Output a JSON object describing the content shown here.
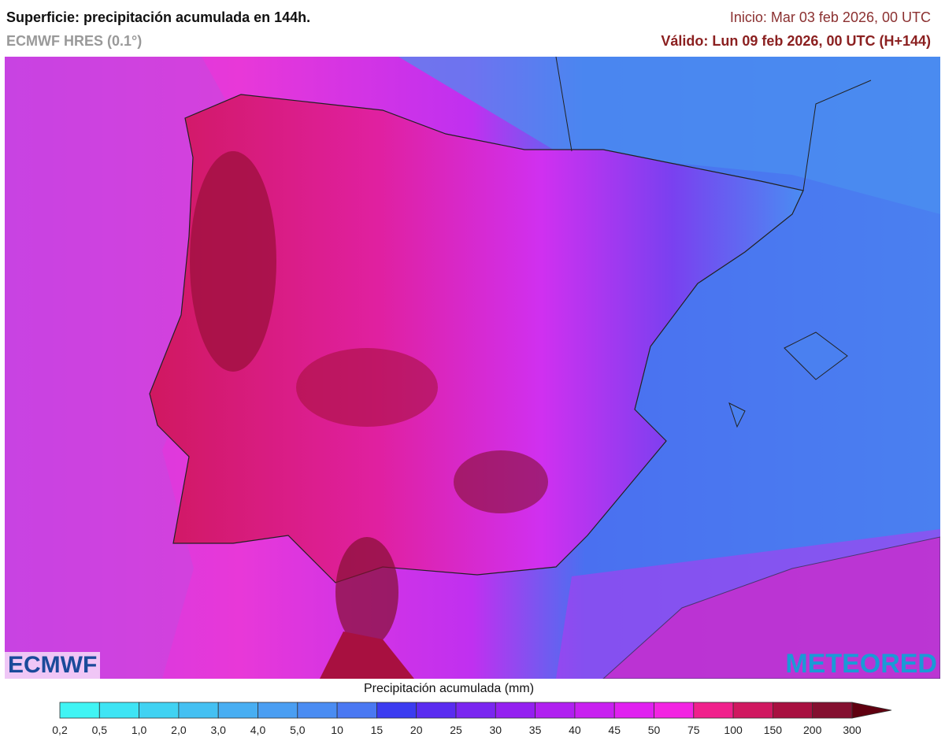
{
  "header": {
    "title": "Superficie: precipitación acumulada en 144h.",
    "model": "ECMWF HRES (0.1°)",
    "init": "Inicio: Mar 03 feb 2026, 00 UTC",
    "valid": "Válido: Lun 09 feb 2026, 00 UTC (H+144)"
  },
  "logos": {
    "left": "ECMWF",
    "right": "METEORED"
  },
  "legend": {
    "title": "Precipitación acumulada (mm)",
    "labels": [
      "0,2",
      "0,5",
      "1,0",
      "2,0",
      "3,0",
      "4,0",
      "5,0",
      "10",
      "15",
      "20",
      "25",
      "30",
      "35",
      "40",
      "45",
      "50",
      "75",
      "100",
      "150",
      "200",
      "300"
    ],
    "colors": [
      "#40f4f4",
      "#3ee4f4",
      "#40d2f2",
      "#44c0f2",
      "#48aef2",
      "#4a9ef2",
      "#4a8cf2",
      "#4a78f2",
      "#3c3cf0",
      "#5a2cf0",
      "#7a26f0",
      "#9420f0",
      "#b020f0",
      "#c820f0",
      "#e020f0",
      "#f224e2",
      "#f0208c",
      "#d01860",
      "#a81040",
      "#841030",
      "#600010"
    ]
  }
}
